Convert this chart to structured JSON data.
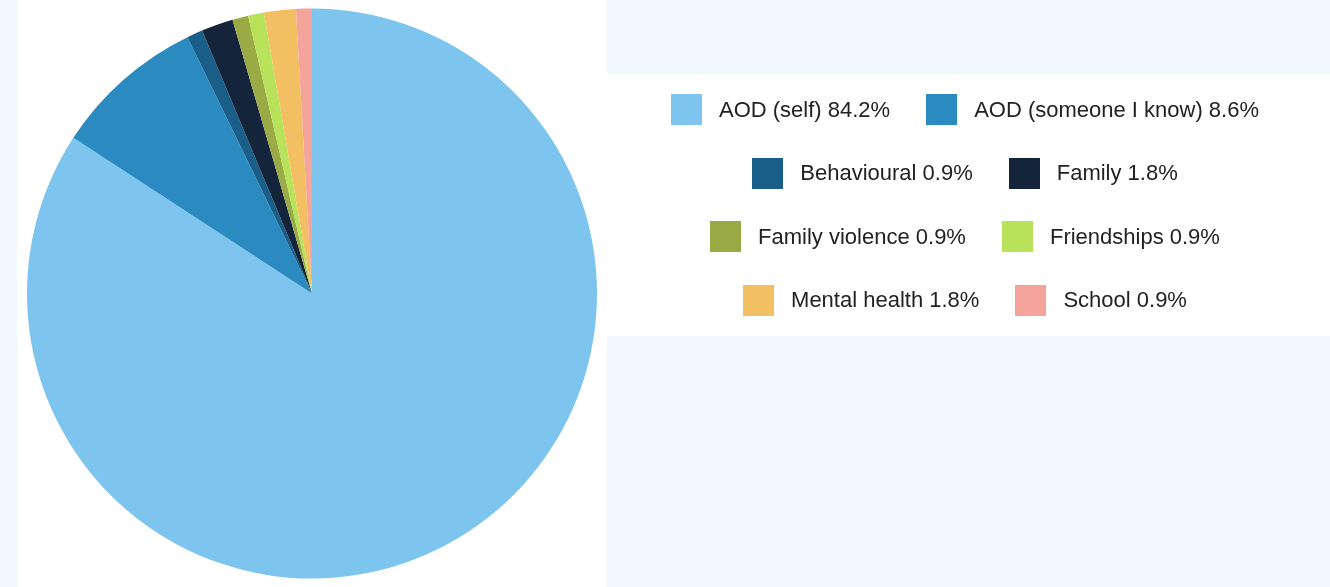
{
  "chart_data": {
    "type": "pie",
    "categories": [
      "AOD (self)",
      "AOD (someone I know)",
      "Behavioural",
      "Family",
      "Family violence",
      "Friendships",
      "Mental health",
      "School"
    ],
    "values": [
      84.2,
      8.6,
      0.9,
      1.8,
      0.9,
      0.9,
      1.8,
      0.9
    ],
    "value_labels": [
      "84.2%",
      "8.6%",
      "0.9%",
      "1.8%",
      "0.9%",
      "0.9%",
      "1.8%",
      "0.9%"
    ],
    "colors": [
      "#7dc4ee",
      "#2b8bc0",
      "#1a5f8a",
      "#14243a",
      "#9aab45",
      "#b7e25a",
      "#f2c063",
      "#f4a49a"
    ],
    "legend": "right"
  }
}
